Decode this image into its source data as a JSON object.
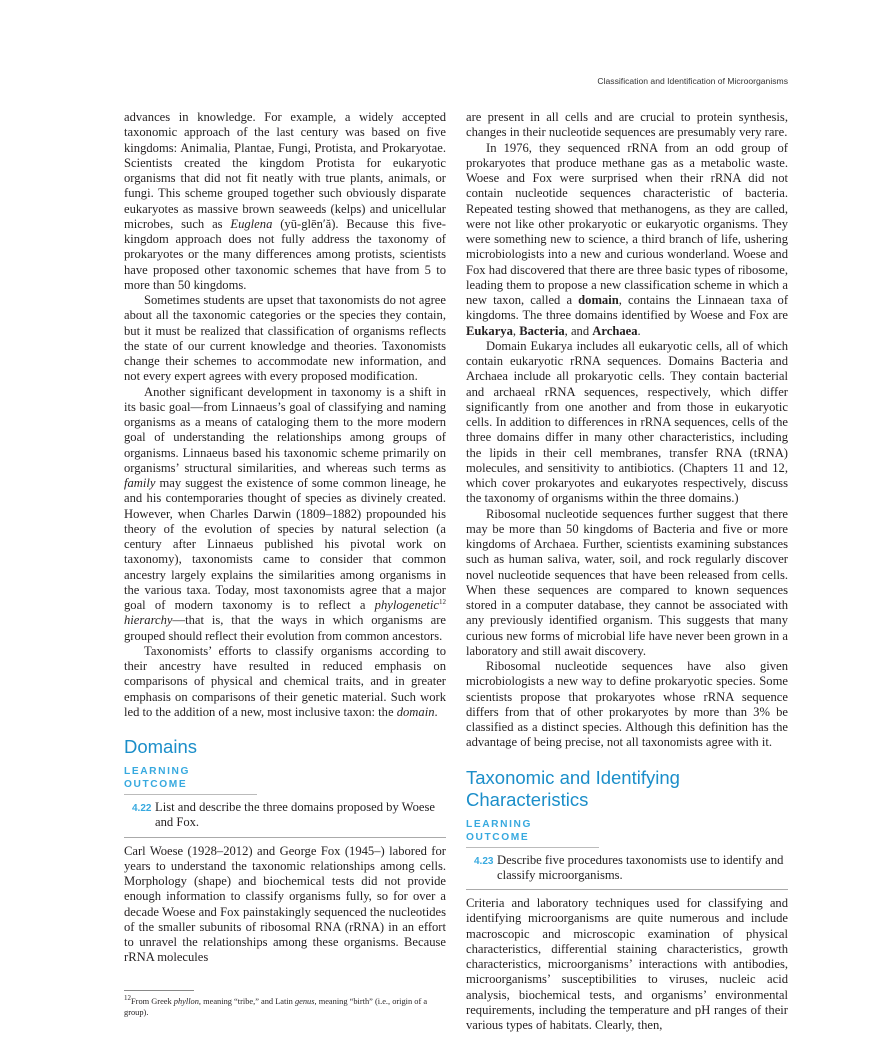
{
  "header": {
    "running_title": "Classification and Identification of Microorganisms"
  },
  "left": {
    "p0": {
      "a": "advances in knowledge. For example, a widely accepted taxonomic approach of the last century was based on five kingdoms: Animalia, Plantae, Fungi, Protista, and Prokaryotae. Scientists created the kingdom Protista for eukaryotic organisms that did not fit neatly with true plants, animals, or fungi. This scheme grouped together such obviously disparate eukaryotes as massive brown seaweeds (kelps) and unicellular microbes, such as ",
      "i1": "Euglena",
      "b": " (yū-glēn′ă). Because this five-kingdom approach does not fully address the taxonomy of prokaryotes or the many differences among protists, scientists have proposed other taxonomic schemes that have from 5 to more than 50 kingdoms."
    },
    "p1": "Sometimes students are upset that taxonomists do not agree about all the taxonomic categories or the species they contain, but it must be realized that classification of organisms reflects the state of our current knowledge and theories. Taxonomists change their schemes to accommodate new information, and not every expert agrees with every proposed modification.",
    "p2": {
      "a": "Another significant development in taxonomy is a shift in its basic goal—from Linnaeus’s goal of classifying and naming organisms as a means of cataloging them to the more modern goal of understanding the relationships among groups of organisms. Linnaeus based his taxonomic scheme primarily on organisms’ structural similarities, and whereas such terms as ",
      "i1": "family",
      "b": " may suggest the existence of some common lineage, he and his contemporaries thought of species as divinely created. However, when Charles Darwin (1809–1882) propounded his theory of the evolution of species by natural selection (a century after Linnaeus published his pivotal work on taxonomy), taxonomists came to consider that common ancestry largely explains the similarities among organisms in the various taxa. Today, most taxonomists agree that a major goal of modern taxonomy is to reflect a ",
      "i2": "phylogenetic",
      "sup": "12",
      "i3": " hierarchy",
      "c": "—that is, that the ways in which organisms are grouped should reflect their evolution from common ancestors."
    },
    "p3": {
      "a": "Taxonomists’ efforts to classify organisms according to their ancestry have resulted in reduced emphasis on comparisons of physical and chemical traits, and in greater emphasis on comparisons of their genetic material. Such work led to the addition of a new, most inclusive taxon: the ",
      "i1": "domain",
      "b": "."
    },
    "heading": "Domains",
    "learning_outcome_label": "LEARNING OUTCOME",
    "outcome_number": "4.22",
    "outcome_text": "List and describe the three domains proposed by Woese and Fox.",
    "p4": "Carl Woese (1928–2012) and George Fox (1945–) labored for years to understand the taxonomic relationships among cells. Morphology (shape) and biochemical tests did not provide enough information to classify organisms fully, so for over a decade Woese and Fox painstakingly sequenced the nucleotides of the smaller subunits of ribosomal RNA (rRNA) in an effort to unravel the relationships among these organisms. Because rRNA molecules"
  },
  "footnote": {
    "sup": "12",
    "a": "From Greek ",
    "i1": "phyllon",
    "b": ", meaning “tribe,” and Latin ",
    "i2": "genus",
    "c": ", meaning “birth” (i.e., origin of a group)."
  },
  "right": {
    "p0": "are present in all cells and are crucial to protein synthesis, changes in their nucleotide sequences are presumably very rare.",
    "p1": {
      "a": "In 1976, they sequenced rRNA from an odd group of prokaryotes that produce methane gas as a metabolic waste. Woese and Fox were surprised when their rRNA did not contain nucleotide sequences characteristic of bacteria. Repeated testing showed that methanogens, as they are called, were not like other prokaryotic or eukaryotic organisms. They were something new to science, a third branch of life, ushering microbiologists into a new and curious wonderland. Woese and Fox had discovered that there are three basic types of ribosome, leading them to propose a new classification scheme in which a new taxon, called a ",
      "b1": "domain",
      "b": ", contains the Linnaean taxa of kingdoms. The three domains identified by Woese and Fox are ",
      "b2": "Eukarya",
      "c": ", ",
      "b3": "Bacteria",
      "d": ", and ",
      "b4": "Archaea",
      "e": "."
    },
    "p2": "Domain Eukarya includes all eukaryotic cells, all of which contain eukaryotic rRNA sequences. Domains Bacteria and Archaea include all prokaryotic cells. They contain bacterial and archaeal rRNA sequences, respectively, which differ significantly from one another and from those in eukaryotic cells. In addition to differences in rRNA sequences, cells of the three domains differ in many other characteristics, including the lipids in their cell membranes, transfer RNA (tRNA) molecules, and sensitivity to antibiotics. (Chapters 11 and 12, which cover prokaryotes and eukaryotes respectively, discuss the taxonomy of organisms within the three domains.)",
    "p3": "Ribosomal nucleotide sequences further suggest that there may be more than 50 kingdoms of Bacteria and five or more kingdoms of Archaea. Further, scientists examining substances such as human saliva, water, soil, and rock regularly discover novel nucleotide sequences that have been released from cells. When these sequences are compared to known sequences stored in a computer database, they cannot be associated with any previously identified organism. This suggests that many curious new forms of microbial life have never been grown in a laboratory and still await discovery.",
    "p4": "Ribosomal nucleotide sequences have also given microbiologists a new way to define prokaryotic species. Some scientists propose that prokaryotes whose rRNA sequence differs from that of other prokaryotes by more than 3% be classified as a distinct species. Although this definition has the advantage of being precise, not all taxonomists agree with it.",
    "heading": "Taxonomic and Identifying Characteristics",
    "learning_outcome_label": "LEARNING OUTCOME",
    "outcome_number": "4.23",
    "outcome_text": "Describe five procedures taxonomists use to identify and classify microorganisms.",
    "p5": "Criteria and laboratory techniques used for classifying and identifying microorganisms are quite numerous and include macroscopic and microscopic examination of physical characteristics, differential staining characteristics, growth characteristics, microorganisms’ interactions with antibodies, microorganisms’ susceptibilities to viruses, nucleic acid analysis, biochemical tests, and organisms’ environmental requirements, including the temperature and pH ranges of their various types of habitats. Clearly, then,"
  }
}
